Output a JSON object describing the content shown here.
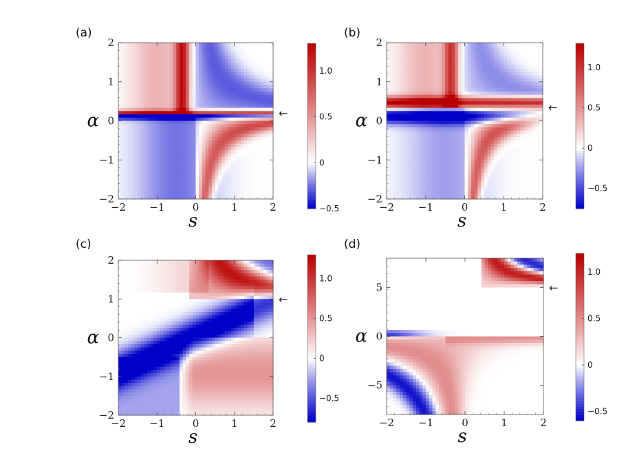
{
  "chart_data": [
    {
      "type": "heatmap",
      "panel_label": "(a)",
      "xlabel": "s",
      "ylabel": "α",
      "xlim": [
        -2,
        2
      ],
      "ylim": [
        -2,
        2
      ],
      "x_ticks": [
        "−2",
        "−1",
        "0",
        "1",
        "2"
      ],
      "x_tick_values": [
        -2,
        -1,
        0,
        1,
        2
      ],
      "y_ticks": [
        "2",
        "1",
        "0",
        "−1",
        "−2"
      ],
      "y_tick_values": [
        2,
        1,
        0,
        -1,
        -2
      ],
      "arrow_marker": "←",
      "arrow_alpha": 0.2,
      "colorscale": "blue-white-red",
      "colorbar": {
        "min": -0.5,
        "max": 1.3,
        "ticks": [
          "1.0",
          "0.5",
          "0",
          "−0.5"
        ],
        "tick_values": [
          1.0,
          0.5,
          0,
          -0.5
        ]
      }
    },
    {
      "type": "heatmap",
      "panel_label": "(b)",
      "xlabel": "s",
      "ylabel": "α",
      "xlim": [
        -2,
        2
      ],
      "ylim": [
        -2,
        2
      ],
      "x_ticks": [
        "−2",
        "−1",
        "0",
        "1",
        "2"
      ],
      "x_tick_values": [
        -2,
        -1,
        0,
        1,
        2
      ],
      "y_ticks": [
        "2",
        "1",
        "0",
        "−1",
        "−2"
      ],
      "y_tick_values": [
        2,
        1,
        0,
        -1,
        -2
      ],
      "arrow_marker": "←",
      "arrow_alpha": 0.35,
      "colorscale": "blue-white-red",
      "colorbar": {
        "min": -0.75,
        "max": 1.3,
        "ticks": [
          "1.0",
          "0.5",
          "0",
          "−0.5"
        ],
        "tick_values": [
          1.0,
          0.5,
          0,
          -0.5
        ]
      }
    },
    {
      "type": "heatmap",
      "panel_label": "(c)",
      "xlabel": "s",
      "ylabel": "α",
      "xlim": [
        -2,
        2
      ],
      "ylim": [
        -2,
        2
      ],
      "x_ticks": [
        "−2",
        "−1",
        "0",
        "1",
        "2"
      ],
      "x_tick_values": [
        -2,
        -1,
        0,
        1,
        2
      ],
      "y_ticks": [
        "2",
        "1",
        "0",
        "−1",
        "−2"
      ],
      "y_tick_values": [
        2,
        1,
        0,
        -1,
        -2
      ],
      "arrow_marker": "←",
      "arrow_alpha": 1.0,
      "colorscale": "blue-white-red",
      "colorbar": {
        "min": -0.8,
        "max": 1.3,
        "ticks": [
          "1.0",
          "0.5",
          "0",
          "−0.5"
        ],
        "tick_values": [
          1.0,
          0.5,
          0,
          -0.5
        ]
      }
    },
    {
      "type": "heatmap",
      "panel_label": "(d)",
      "xlabel": "s",
      "ylabel": "α",
      "xlim": [
        -2,
        2
      ],
      "ylim": [
        -8,
        8
      ],
      "x_ticks": [
        "−2",
        "−1",
        "0",
        "1",
        "2"
      ],
      "x_tick_values": [
        -2,
        -1,
        0,
        1,
        2
      ],
      "y_ticks": [
        "5",
        "0",
        "−5"
      ],
      "y_tick_values": [
        5,
        0,
        -5
      ],
      "arrow_marker": "←",
      "arrow_alpha": 5.0,
      "colorscale": "blue-white-red",
      "colorbar": {
        "min": -0.6,
        "max": 1.2,
        "ticks": [
          "1.0",
          "0.5",
          "0",
          "−0.5"
        ],
        "tick_values": [
          1.0,
          0.5,
          0,
          -0.5
        ]
      }
    }
  ]
}
